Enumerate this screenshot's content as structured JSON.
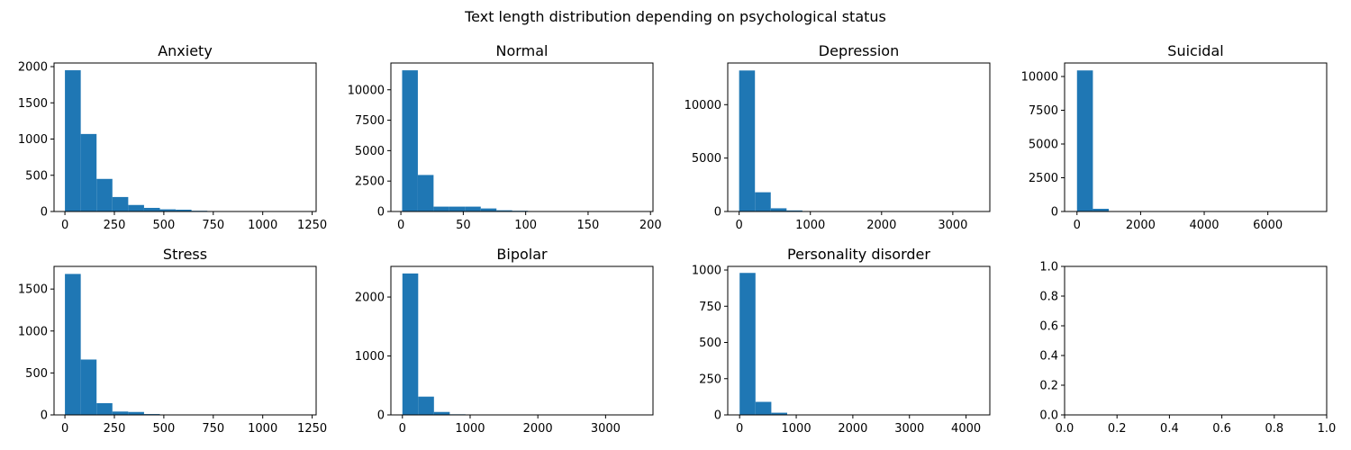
{
  "figure": {
    "title": "Text length distribution depending on psychological status",
    "bar_color": "#1f77b4"
  },
  "chart_data": [
    {
      "type": "bar",
      "title": "Anxiety",
      "xlim": [
        -55,
        1270
      ],
      "ylim": [
        0,
        2050
      ],
      "xticks": [
        0,
        250,
        500,
        750,
        1000,
        1250
      ],
      "yticks": [
        0,
        500,
        1000,
        1500,
        2000
      ],
      "bin_edges": [
        0,
        80,
        160,
        240,
        320,
        400,
        480,
        560,
        640,
        720,
        800,
        880,
        960,
        1040,
        1120,
        1200
      ],
      "counts": [
        1950,
        1070,
        450,
        200,
        90,
        50,
        30,
        25,
        10,
        5,
        3,
        2,
        1,
        1,
        1
      ]
    },
    {
      "type": "bar",
      "title": "Normal",
      "xlim": [
        -8,
        202
      ],
      "ylim": [
        0,
        12200
      ],
      "xticks": [
        0,
        50,
        100,
        150,
        200
      ],
      "yticks": [
        0,
        2500,
        5000,
        7500,
        10000
      ],
      "bin_edges": [
        1,
        13.6,
        26.2,
        38.8,
        51.4,
        64,
        76.6,
        89.2,
        101.8,
        114.4,
        127,
        139.6,
        152.2,
        164.8,
        177.4,
        190
      ],
      "counts": [
        11600,
        3000,
        400,
        400,
        400,
        250,
        100,
        60,
        10,
        5,
        3,
        2,
        1,
        1,
        1
      ]
    },
    {
      "type": "bar",
      "title": "Depression",
      "xlim": [
        -160,
        3520
      ],
      "ylim": [
        0,
        13900
      ],
      "xticks": [
        0,
        1000,
        2000,
        3000
      ],
      "yticks": [
        0,
        5000,
        10000
      ],
      "bin_edges": [
        0,
        222,
        444,
        666,
        888,
        1110,
        1332,
        1554,
        1776,
        1998,
        2220,
        2442,
        2664,
        2886,
        3108,
        3330
      ],
      "counts": [
        13200,
        1800,
        300,
        100,
        30,
        10,
        5,
        3,
        2,
        1,
        1,
        1,
        1,
        1,
        1
      ]
    },
    {
      "type": "bar",
      "title": "Suicidal",
      "xlim": [
        -390,
        7850
      ],
      "ylim": [
        0,
        11000
      ],
      "xticks": [
        0,
        2000,
        4000,
        6000
      ],
      "yticks": [
        0,
        2500,
        5000,
        7500,
        10000
      ],
      "bin_edges": [
        0,
        500,
        1000,
        1500,
        2000,
        2500,
        3000,
        3500,
        4000,
        4500,
        5000,
        5500,
        6000,
        6500,
        7000,
        7500
      ],
      "counts": [
        10450,
        200,
        30,
        10,
        5,
        3,
        2,
        1,
        1,
        1,
        1,
        1,
        1,
        1,
        1
      ]
    },
    {
      "type": "bar",
      "title": "Stress",
      "xlim": [
        -55,
        1270
      ],
      "ylim": [
        0,
        1770
      ],
      "xticks": [
        0,
        250,
        500,
        750,
        1000,
        1250
      ],
      "yticks": [
        0,
        500,
        1000,
        1500
      ],
      "bin_edges": [
        0,
        80,
        160,
        240,
        320,
        400,
        480,
        560,
        640,
        720,
        800,
        880,
        960,
        1040,
        1120,
        1200
      ],
      "counts": [
        1680,
        660,
        140,
        40,
        35,
        10,
        5,
        3,
        2,
        1,
        1,
        1,
        1,
        1,
        1
      ]
    },
    {
      "type": "bar",
      "title": "Bipolar",
      "xlim": [
        -170,
        3700
      ],
      "ylim": [
        0,
        2520
      ],
      "xticks": [
        0,
        1000,
        2000,
        3000
      ],
      "yticks": [
        0,
        1000,
        2000
      ],
      "bin_edges": [
        0,
        233,
        466,
        699,
        932,
        1165,
        1398,
        1631,
        1864,
        2097,
        2330,
        2563,
        2796,
        3029,
        3262,
        3495
      ],
      "counts": [
        2400,
        310,
        50,
        10,
        5,
        3,
        2,
        1,
        1,
        1,
        1,
        1,
        1,
        1,
        1
      ]
    },
    {
      "type": "bar",
      "title": "Personality disorder",
      "xlim": [
        -210,
        4420
      ],
      "ylim": [
        0,
        1025
      ],
      "xticks": [
        0,
        1000,
        2000,
        3000,
        4000
      ],
      "yticks": [
        0,
        250,
        500,
        750,
        1000
      ],
      "bin_edges": [
        0,
        280,
        560,
        840,
        1120,
        1400,
        1680,
        1960,
        2240,
        2520,
        2800,
        3080,
        3360,
        3640,
        3920,
        4200
      ],
      "counts": [
        980,
        90,
        15,
        3,
        2,
        1,
        1,
        1,
        1,
        1,
        1,
        1,
        1,
        1,
        1
      ]
    },
    {
      "type": "bar",
      "title": "",
      "xlim": [
        0,
        1
      ],
      "ylim": [
        0,
        1
      ],
      "xticks": [
        "0.0",
        "0.2",
        "0.4",
        "0.6",
        "0.8",
        "1.0"
      ],
      "yticks": [
        "0.0",
        "0.2",
        "0.4",
        "0.6",
        "0.8",
        "1.0"
      ],
      "bin_edges": [],
      "counts": []
    }
  ]
}
